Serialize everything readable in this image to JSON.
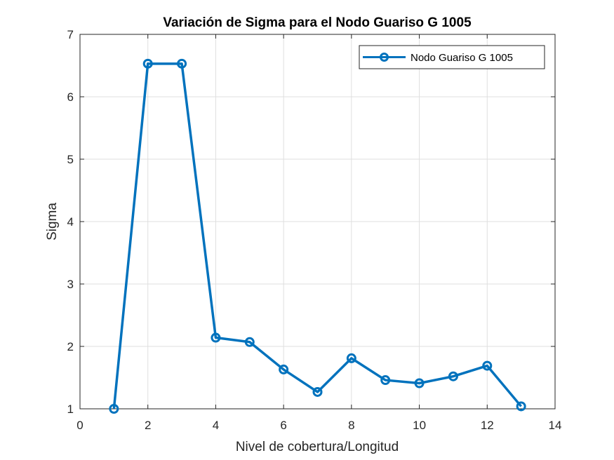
{
  "chart_data": {
    "type": "line",
    "title": "Variación de Sigma para el Nodo Guariso G 1005",
    "xlabel": "Nivel de cobertura/Longitud",
    "ylabel": "Sigma",
    "xlim": [
      0,
      14
    ],
    "ylim": [
      1,
      7
    ],
    "xticks": [
      0,
      2,
      4,
      6,
      8,
      10,
      12,
      14
    ],
    "yticks": [
      1,
      2,
      3,
      4,
      5,
      6,
      7
    ],
    "grid": true,
    "legend_position": "top-right",
    "series": [
      {
        "name": "Nodo Guariso G 1005",
        "color": "#0072BD",
        "marker": "circle",
        "x": [
          1,
          2,
          3,
          4,
          5,
          6,
          7,
          8,
          9,
          10,
          11,
          12,
          13
        ],
        "y": [
          1.0,
          6.53,
          6.53,
          2.14,
          2.07,
          1.63,
          1.27,
          1.81,
          1.46,
          1.41,
          1.52,
          1.69,
          1.04
        ]
      }
    ]
  }
}
